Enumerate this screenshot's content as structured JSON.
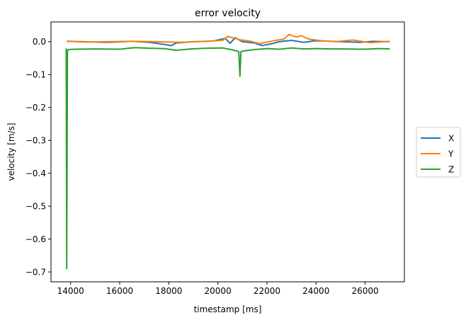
{
  "chart_data": {
    "type": "line",
    "title": "error velocity",
    "xlabel": "timestamp [ms]",
    "ylabel": "velocity [m/s]",
    "xlim": [
      13200,
      27600
    ],
    "ylim": [
      -0.73,
      0.06
    ],
    "xticks": [
      14000,
      16000,
      18000,
      20000,
      22000,
      24000,
      26000
    ],
    "xtick_labels": [
      "14000",
      "16000",
      "18000",
      "20000",
      "22000",
      "24000",
      "26000"
    ],
    "yticks": [
      0.0,
      -0.1,
      -0.2,
      -0.3,
      -0.4,
      -0.5,
      -0.6,
      -0.7
    ],
    "ytick_labels": [
      "0.0",
      "−0.1",
      "−0.2",
      "−0.3",
      "−0.4",
      "−0.5",
      "−0.6",
      "−0.7"
    ],
    "grid": false,
    "legend_position": "center-right outside",
    "series": [
      {
        "name": "X",
        "color": "#1f77b4",
        "x": [
          13850,
          14500,
          15500,
          16500,
          17200,
          17800,
          18100,
          18300,
          19000,
          19800,
          20300,
          20500,
          20700,
          21000,
          21500,
          21800,
          22200,
          22500,
          23000,
          23500,
          24000,
          25000,
          25800,
          26300,
          27000
        ],
        "y": [
          0.001,
          0.0,
          -0.002,
          0.001,
          -0.002,
          -0.008,
          -0.012,
          -0.004,
          0.0,
          0.002,
          0.01,
          -0.005,
          0.012,
          0.0,
          -0.004,
          -0.012,
          -0.006,
          0.0,
          0.004,
          -0.002,
          0.003,
          0.0,
          -0.002,
          0.001,
          0.0
        ]
      },
      {
        "name": "Y",
        "color": "#ff7f0e",
        "x": [
          13850,
          14500,
          15500,
          16500,
          17500,
          18500,
          19500,
          20200,
          20400,
          20600,
          20900,
          21300,
          21700,
          22200,
          22700,
          22900,
          23200,
          23400,
          23700,
          24200,
          24800,
          25500,
          26200,
          27000
        ],
        "y": [
          0.002,
          -0.001,
          0.0,
          0.001,
          0.0,
          -0.002,
          0.001,
          0.004,
          0.016,
          0.012,
          0.006,
          0.002,
          -0.006,
          0.002,
          0.008,
          0.022,
          0.014,
          0.018,
          0.008,
          0.003,
          0.0,
          0.005,
          -0.003,
          0.001
        ]
      },
      {
        "name": "Z",
        "color": "#2ca02c",
        "x": [
          13820,
          13840,
          13870,
          13900,
          14200,
          15000,
          16000,
          16600,
          17200,
          17800,
          18300,
          18900,
          19500,
          20200,
          20600,
          20850,
          20900,
          20940,
          21050,
          21500,
          22000,
          22500,
          23000,
          23500,
          24000,
          24600,
          25200,
          26000,
          26600,
          27000
        ],
        "y": [
          -0.02,
          -0.69,
          -0.03,
          -0.024,
          -0.023,
          -0.022,
          -0.023,
          -0.018,
          -0.02,
          -0.021,
          -0.026,
          -0.022,
          -0.02,
          -0.019,
          -0.025,
          -0.03,
          -0.105,
          -0.03,
          -0.028,
          -0.024,
          -0.021,
          -0.023,
          -0.019,
          -0.022,
          -0.021,
          -0.022,
          -0.022,
          -0.023,
          -0.021,
          -0.022
        ]
      }
    ]
  }
}
